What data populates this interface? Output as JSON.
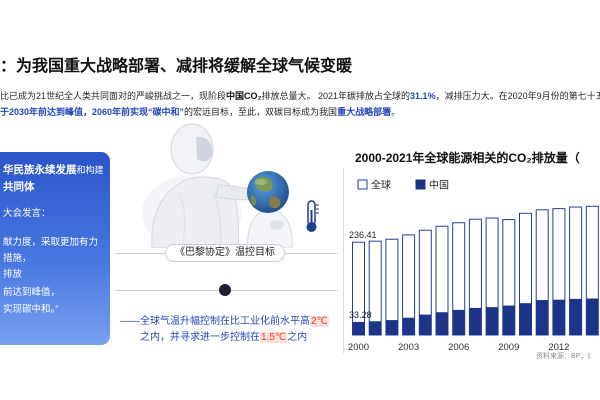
{
  "title": "：为我国重大战略部署、减排将缓解全球气候变暖",
  "intro": {
    "line1": [
      "比已成为21世纪全人类共同面对的严峻挑战之一，现阶段",
      "中国CO₂",
      "排放总量大。 2021年碳排放占全球的",
      "31.1%",
      "，减排压力大。在2020年9月份的第七十五届联"
    ],
    "line2": [
      "于2030年前达到峰值，2060年前实现“碳中和”",
      "的宏远目标，至此，双碳目标成为我国",
      "重大战略部署",
      "。"
    ]
  },
  "left_panel": {
    "heading_bold": "华民族永续发展",
    "heading_rest": "和构建",
    "heading_line2": "共同体",
    "speech_intro": "大会发言：",
    "quote_lines": [
      "献力度，采取更加有力",
      "措施，",
      "排放",
      "前达到峰值，",
      "实现碳中和。”"
    ]
  },
  "icons": {
    "globe": "globe-icon",
    "thermometer": "thermometer-icon",
    "marker": "dot-icon"
  },
  "paris_agreement": {
    "label": "《巴黎协定》温控目标",
    "goal_line1": "——全球气温升幅控制在比工业化前水平高",
    "goal_limit1": "2℃",
    "goal_line2": "之内，并寻求进一步控制在",
    "goal_limit2": "1.5℃",
    "goal_line2_end": "之内"
  },
  "chart_data": {
    "type": "bar",
    "bar_mode": "overlay",
    "title": "2000-2021年全球能源相关的CO₂排放量（",
    "x": [
      2000,
      2001,
      2002,
      2003,
      2004,
      2005,
      2006,
      2007,
      2008,
      2009,
      2010,
      2011,
      2012,
      2013,
      2014
    ],
    "x_ticks": [
      2000,
      2003,
      2006,
      2009,
      2012
    ],
    "series": [
      {
        "name": "全球",
        "values": [
          236.41,
          239,
          244,
          255,
          267,
          277,
          286,
          295,
          298,
          294,
          310,
          319,
          322,
          326,
          328
        ],
        "color": "#ffffff",
        "edge_color": "#22409a"
      },
      {
        "name": "中国",
        "values": [
          33.28,
          35,
          38,
          44,
          52,
          58,
          64,
          69,
          71,
          75,
          81,
          89,
          90,
          92,
          93
        ],
        "color": "#1c3588"
      }
    ],
    "data_labels": [
      {
        "series": "全球",
        "x": 2000,
        "label": "236.41"
      },
      {
        "series": "中国",
        "x": 2000,
        "label": "33.28"
      }
    ],
    "ylim": [
      0,
      400
    ],
    "legend": "top-left",
    "grid": false
  },
  "chart_source": "资料来源：BP；《",
  "colors": {
    "accent_blue": "#2446b8",
    "panel_top": "#2b55c9",
    "panel_bottom": "#77a0f0",
    "warming_red": "#e5432a",
    "warming_bg": "#fde0da"
  }
}
